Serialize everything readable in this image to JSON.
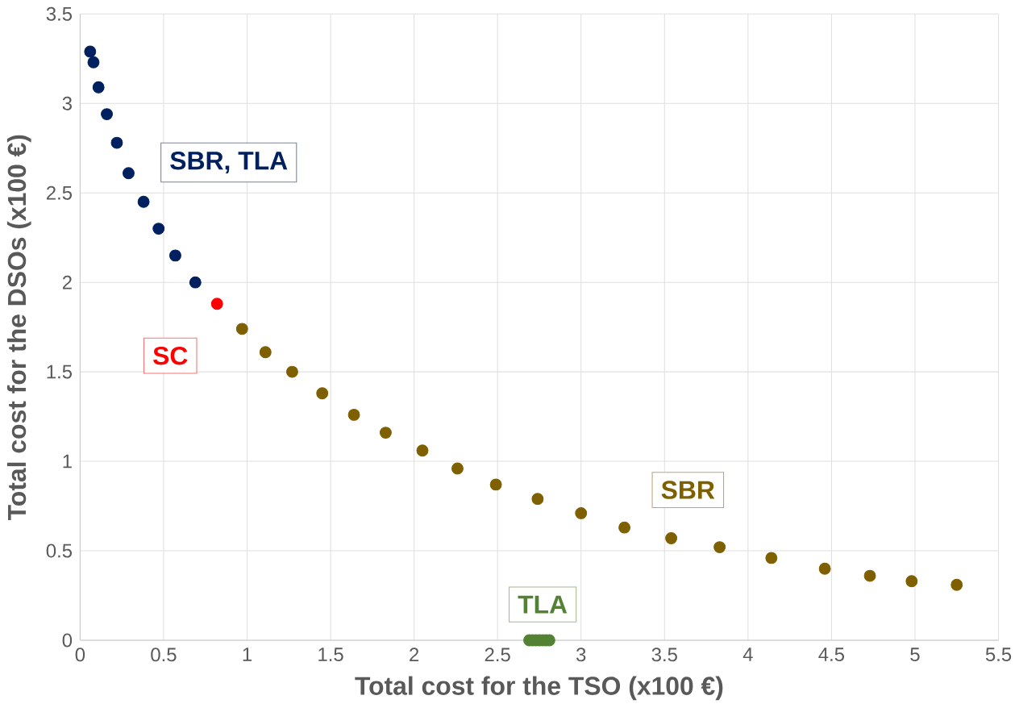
{
  "chart_data": {
    "type": "scatter",
    "xlabel": "Total cost for the TSO (x100 €)",
    "ylabel": "Total cost for the DSOs (x100 €)",
    "xlim": [
      0,
      5.5
    ],
    "ylim": [
      0,
      3.5
    ],
    "xticks": [
      0,
      0.5,
      1,
      1.5,
      2,
      2.5,
      3,
      3.5,
      4,
      4.5,
      5,
      5.5
    ],
    "yticks": [
      0,
      0.5,
      1,
      1.5,
      2,
      2.5,
      3,
      3.5
    ],
    "grid": true,
    "marker": "circle",
    "series": [
      {
        "name": "SBR, TLA",
        "color": "#002060",
        "x": [
          0.06,
          0.08,
          0.11,
          0.16,
          0.22,
          0.29,
          0.38,
          0.47,
          0.57,
          0.69
        ],
        "values": [
          3.29,
          3.23,
          3.09,
          2.94,
          2.78,
          2.61,
          2.45,
          2.3,
          2.15,
          2.0
        ]
      },
      {
        "name": "SC",
        "color": "#ff0000",
        "x": [
          0.82
        ],
        "values": [
          1.88
        ]
      },
      {
        "name": "SBR",
        "color": "#7f6000",
        "x": [
          0.97,
          1.11,
          1.27,
          1.45,
          1.64,
          1.83,
          2.05,
          2.26,
          2.49,
          2.74,
          3.0,
          3.26,
          3.54,
          3.83,
          4.14,
          4.46,
          4.73,
          4.98,
          5.25
        ],
        "values": [
          1.74,
          1.61,
          1.5,
          1.38,
          1.26,
          1.16,
          1.06,
          0.96,
          0.87,
          0.79,
          0.71,
          0.63,
          0.57,
          0.52,
          0.46,
          0.4,
          0.36,
          0.33,
          0.31
        ]
      },
      {
        "name": "TLA",
        "color": "#548235",
        "x": [
          2.69,
          2.71,
          2.73,
          2.75,
          2.77,
          2.79,
          2.81
        ],
        "values": [
          0,
          0,
          0,
          0,
          0,
          0,
          0
        ]
      }
    ]
  }
}
